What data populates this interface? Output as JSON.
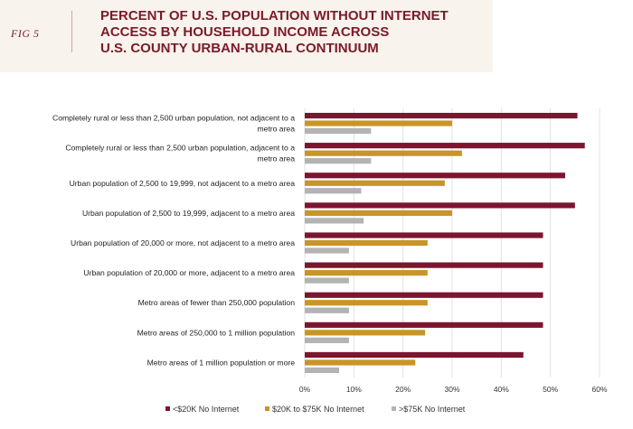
{
  "figure": {
    "label": "FIG 5",
    "title_lines": [
      "PERCENT OF U.S. POPULATION WITHOUT INTERNET",
      "ACCESS BY HOUSEHOLD INCOME ACROSS",
      "U.S. COUNTY URBAN-RURAL CONTINUUM"
    ]
  },
  "chart_data": {
    "type": "bar",
    "orientation": "horizontal",
    "title": "PERCENT OF U.S. POPULATION WITHOUT INTERNET ACCESS BY HOUSEHOLD INCOME ACROSS U.S. COUNTY URBAN-RURAL CONTINUUM",
    "xlabel": "",
    "ylabel": "",
    "xlim": [
      0,
      60
    ],
    "x_ticks": [
      "0%",
      "10%",
      "20%",
      "30%",
      "40%",
      "50%",
      "60%"
    ],
    "grid": true,
    "legend_position": "bottom",
    "categories": [
      [
        "Completely rural or less than 2,500 urban population, not adjacent to a",
        "metro area"
      ],
      [
        "Completely rural or less than 2,500 urban population, adjacent to a",
        "metro area"
      ],
      [
        "Urban population of 2,500 to 19,999, not adjacent to a metro area"
      ],
      [
        "Urban population of 2,500 to 19,999, adjacent to a metro area"
      ],
      [
        "Urban population of 20,000 or more, not adjacent to a metro area"
      ],
      [
        "Urban population of 20,000 or more, adjacent to a metro area"
      ],
      [
        "Metro areas of fewer than 250,000 population"
      ],
      [
        "Metro areas of 250,000 to 1 million population"
      ],
      [
        "Metro areas of 1 million population or more"
      ]
    ],
    "series": [
      {
        "name": "<$20K No Internet",
        "color": "#7b1530",
        "values": [
          55.5,
          57,
          53,
          55,
          48.5,
          48.5,
          48.5,
          48.5,
          44.5
        ]
      },
      {
        "name": "$20K to $75K No Internet",
        "color": "#c8952a",
        "values": [
          30,
          32,
          28.5,
          30,
          25,
          25,
          25,
          24.5,
          22.5
        ]
      },
      {
        "name": ">$75K No Internet",
        "color": "#b3b3b3",
        "values": [
          13.5,
          13.5,
          11.5,
          12,
          9,
          9,
          9,
          9,
          7
        ]
      }
    ]
  }
}
